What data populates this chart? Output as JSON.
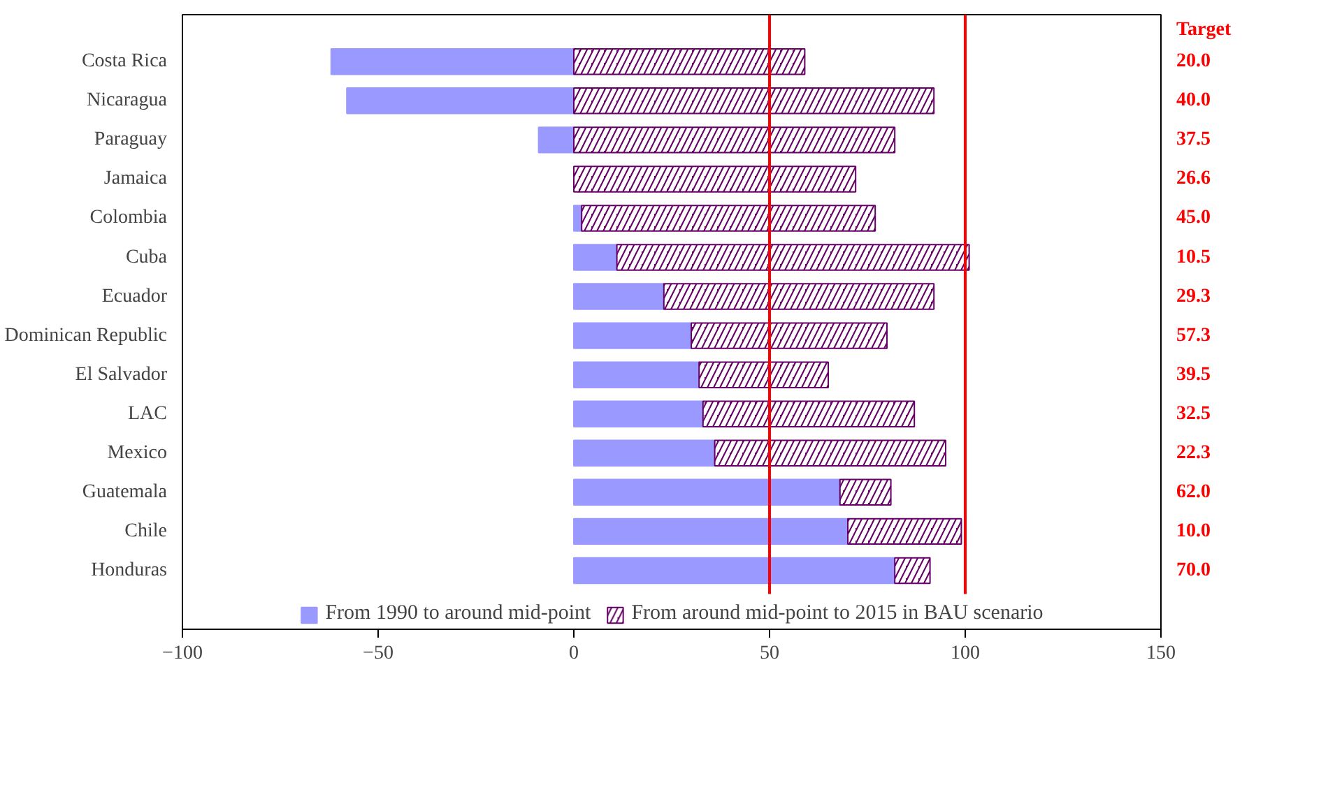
{
  "chart_data": {
    "type": "bar",
    "orientation": "horizontal",
    "stacked": true,
    "categories": [
      "Costa Rica",
      "Nicaragua",
      "Paraguay",
      "Jamaica",
      "Colombia",
      "Cuba",
      "Ecuador",
      "Dominican Republic",
      "El Salvador",
      "LAC",
      "Mexico",
      "Guatemala",
      "Chile",
      "Honduras"
    ],
    "series": [
      {
        "name": "From 1990 to around mid-point",
        "color": "#9999ff",
        "values": [
          -62,
          -58,
          -9,
          0,
          2,
          11,
          23,
          30,
          32,
          33,
          36,
          68,
          70,
          82
        ]
      },
      {
        "name": "From around mid-point to 2015 in BAU scenario",
        "color": "#660066",
        "values": [
          59,
          92,
          82,
          72,
          75,
          90,
          69,
          50,
          33,
          54,
          59,
          13,
          29,
          9
        ]
      }
    ],
    "xlim": [
      -100,
      150
    ],
    "xticks": [
      -100,
      -50,
      0,
      50,
      100,
      150
    ],
    "ref_lines": [
      {
        "axis": "x",
        "value": 50,
        "color": "#ff0000"
      },
      {
        "axis": "x",
        "value": 100,
        "color": "#ff0000"
      }
    ],
    "annotations": [
      "Target",
      "20.0",
      "40.0",
      "37.5",
      "26.6",
      "45.0",
      "10.5",
      "29.3",
      "57.3",
      "39.5",
      "32.5",
      "22.3",
      "62.0",
      "10.0",
      "70.0"
    ],
    "legend": "bottom",
    "grid": false
  }
}
